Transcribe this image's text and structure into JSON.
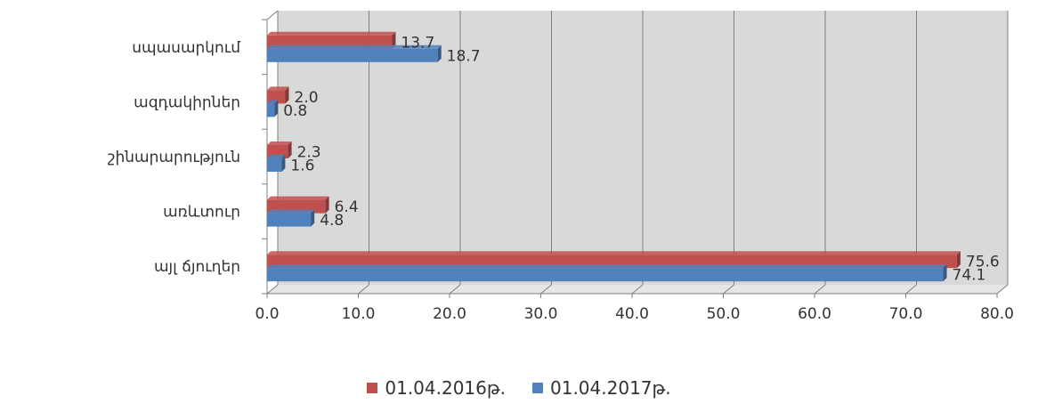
{
  "chart_data": {
    "type": "bar",
    "orientation": "horizontal",
    "categories": [
      "սպասարկում",
      "ազդակիրներ",
      "շինարարություն",
      "առևտուր",
      "այլ ճյուղեր"
    ],
    "series": [
      {
        "name": "01.04.2016թ.",
        "color": "#c0504d",
        "values": [
          13.7,
          2.0,
          2.3,
          6.4,
          75.6
        ]
      },
      {
        "name": "01.04.2017թ.",
        "color": "#4f81bd",
        "values": [
          18.7,
          0.8,
          1.6,
          4.8,
          74.1
        ]
      }
    ],
    "xlim": [
      0,
      80
    ],
    "x_ticks": [
      "0.0",
      "10.0",
      "20.0",
      "30.0",
      "40.0",
      "50.0",
      "60.0",
      "70.0",
      "80.0"
    ],
    "grid": true,
    "legend_position": "bottom",
    "three_d": true
  }
}
